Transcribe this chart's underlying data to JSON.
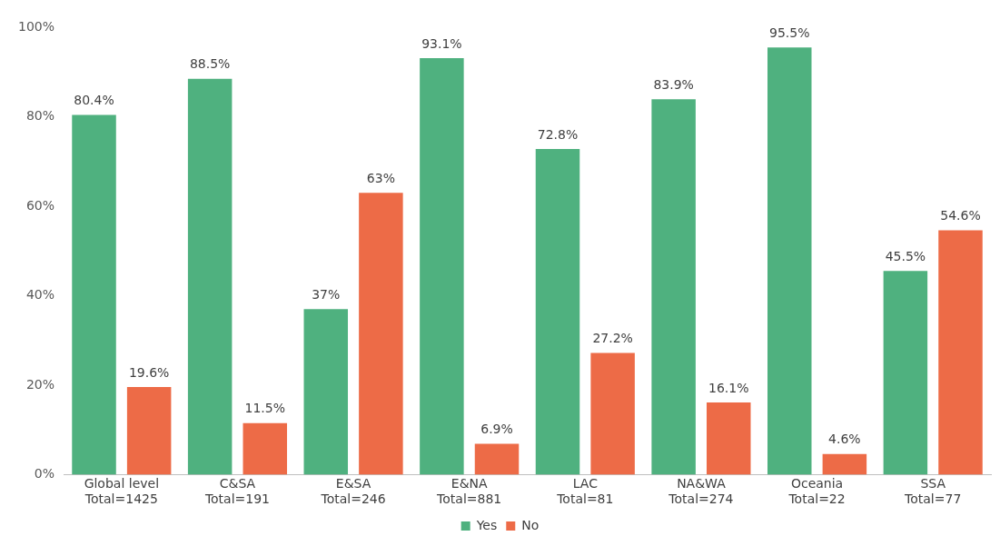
{
  "chart_data": {
    "type": "bar",
    "categories": [
      "Global level\nTotal=1425",
      "C&SA\nTotal=191",
      "E&SA\nTotal=246",
      "E&NA\nTotal=881",
      "LAC\nTotal=81",
      "NA&WA\nTotal=274",
      "Oceania\nTotal=22",
      "SSA\nTotal=77"
    ],
    "series": [
      {
        "name": "Yes",
        "color": "#4fb17f",
        "values": [
          80.4,
          88.5,
          37,
          93.1,
          72.8,
          83.9,
          95.5,
          45.5
        ],
        "value_labels": [
          "80.4%",
          "88.5%",
          "37%",
          "93.1%",
          "72.8%",
          "83.9%",
          "95.5%",
          "45.5%"
        ]
      },
      {
        "name": "No",
        "color": "#ed6b47",
        "values": [
          19.6,
          11.5,
          63,
          6.9,
          27.2,
          16.1,
          4.6,
          54.6
        ],
        "value_labels": [
          "19.6%",
          "11.5%",
          "63%",
          "6.9%",
          "27.2%",
          "16.1%",
          "4.6%",
          "54.6%"
        ]
      }
    ],
    "ylim": [
      0,
      100
    ],
    "yticks": [
      {
        "value": 0,
        "label": "0%"
      },
      {
        "value": 20,
        "label": "20%"
      },
      {
        "value": 40,
        "label": "40%"
      },
      {
        "value": 60,
        "label": "60%"
      },
      {
        "value": 80,
        "label": "80%"
      },
      {
        "value": 100,
        "label": "100%"
      }
    ],
    "grid": false,
    "legend": "bottom"
  }
}
